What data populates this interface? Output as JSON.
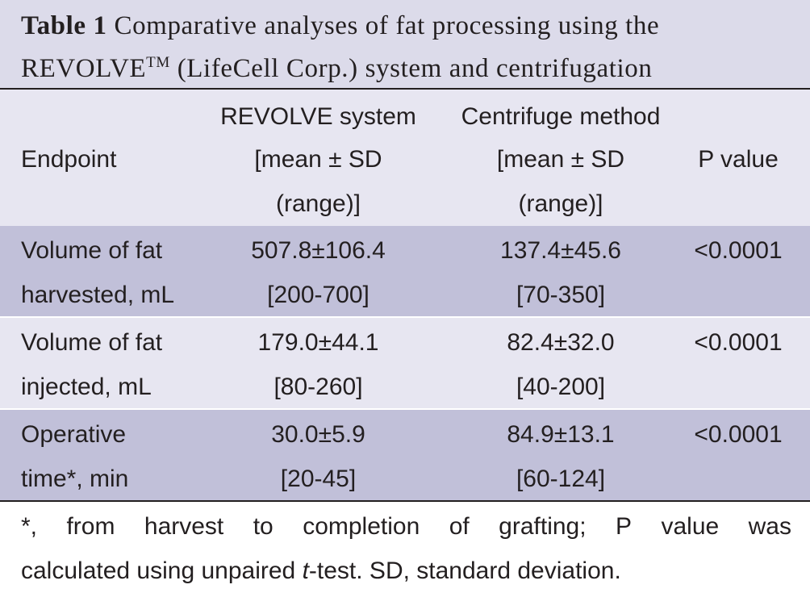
{
  "caption": {
    "label": "Table 1",
    "text_before_tm": "Comparative analyses of fat processing using the REVOLVE",
    "trademark": "TM",
    "text_after_tm": " (LifeCell Corp.) system and centrifugation"
  },
  "header": {
    "endpoint": "Endpoint",
    "revolve_line1": "REVOLVE system",
    "revolve_line2": "[mean ± SD",
    "revolve_line3": "(range)]",
    "centrifuge_line1": "Centrifuge method",
    "centrifuge_line2": "[mean ± SD",
    "centrifuge_line3": "(range)]",
    "p_value": "P value"
  },
  "rows": [
    {
      "endpoint_line1": "Volume of fat",
      "endpoint_line2": "harvested, mL",
      "revolve_mean": "507.8±106.4",
      "revolve_range": "[200-700]",
      "centrifuge_mean": "137.4±45.6",
      "centrifuge_range": "[70-350]",
      "p_value": "<0.0001"
    },
    {
      "endpoint_line1": "Volume of fat",
      "endpoint_line2": "injected, mL",
      "revolve_mean": "179.0±44.1",
      "revolve_range": "[80-260]",
      "centrifuge_mean": "82.4±32.0",
      "centrifuge_range": "[40-200]",
      "p_value": "<0.0001"
    },
    {
      "endpoint_line1": "Operative",
      "endpoint_line2": "time*, min",
      "revolve_mean": "30.0±5.9",
      "revolve_range": "[20-45]",
      "centrifuge_mean": "84.9±13.1",
      "centrifuge_range": "[60-124]",
      "p_value": "<0.0001"
    }
  ],
  "footnote": {
    "l1_part1": "*,",
    "l1_part2": "from",
    "l1_part3": "harvest",
    "l1_part4": "to",
    "l1_part5": "completion",
    "l1_part6": "of",
    "l1_part7": "grafting;",
    "l1_part8": "P",
    "l1_part9": "value",
    "l1_part10": "was",
    "l2_before_t": "calculated using unpaired ",
    "l2_t": "t",
    "l2_after_t": "-test. SD, standard deviation."
  },
  "colors": {
    "caption_background": "#dcdbea",
    "header_background": "#e7e6f1",
    "shaded_row": "#c1c0d9",
    "light_row": "#e7e6f1",
    "text": "#231f20"
  }
}
